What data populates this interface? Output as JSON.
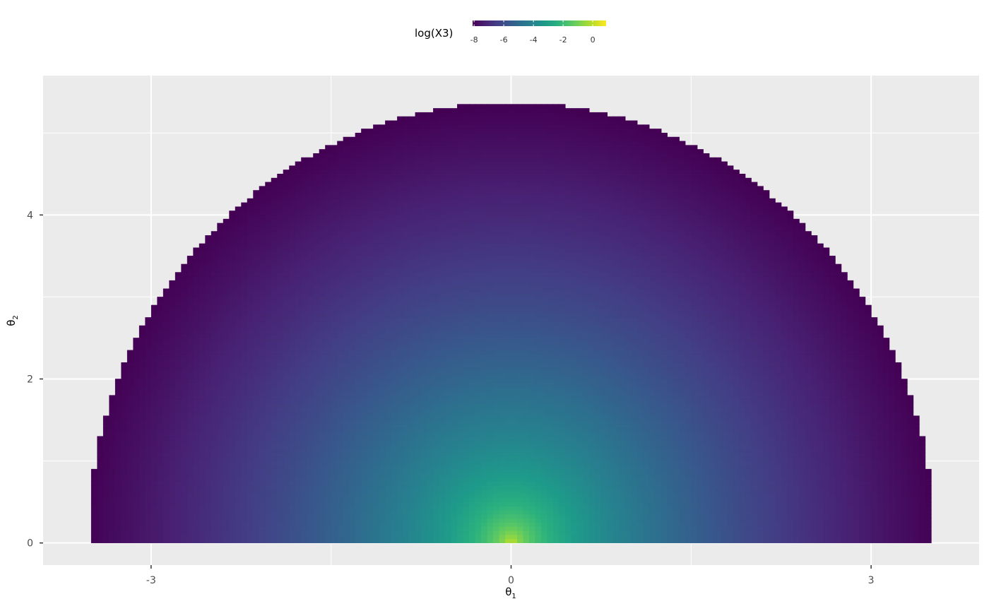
{
  "chart_data": {
    "type": "heatmap",
    "title": "",
    "xlabel": {
      "symbol": "θ",
      "subscript": "1"
    },
    "ylabel": {
      "symbol": "θ",
      "subscript": "2"
    },
    "xlim": [
      -3.9,
      3.9
    ],
    "ylim": [
      -0.27,
      5.7
    ],
    "x_ticks": [
      -3,
      0,
      3
    ],
    "x_tick_labels": [
      "-3",
      "0",
      "3"
    ],
    "y_ticks": [
      0,
      2,
      4
    ],
    "y_tick_labels": [
      "0",
      "2",
      "4"
    ],
    "grid": true,
    "region": {
      "shape": "half-disc",
      "center": [
        0,
        0
      ],
      "x_radius": 3.55,
      "y_radius": 5.35,
      "grid_step": 0.05
    },
    "fill": {
      "variable": "log(X3)",
      "colormap": "viridis",
      "range": [
        -8.1,
        0.9
      ],
      "peak_at": [
        0,
        0
      ]
    },
    "legend": {
      "title": "log(X3)",
      "placement": "top",
      "orientation": "horizontal",
      "ticks": [
        -8,
        -6,
        -4,
        -2,
        0
      ],
      "tick_labels": [
        "-8",
        "-6",
        "-4",
        "-2",
        "0"
      ]
    }
  }
}
